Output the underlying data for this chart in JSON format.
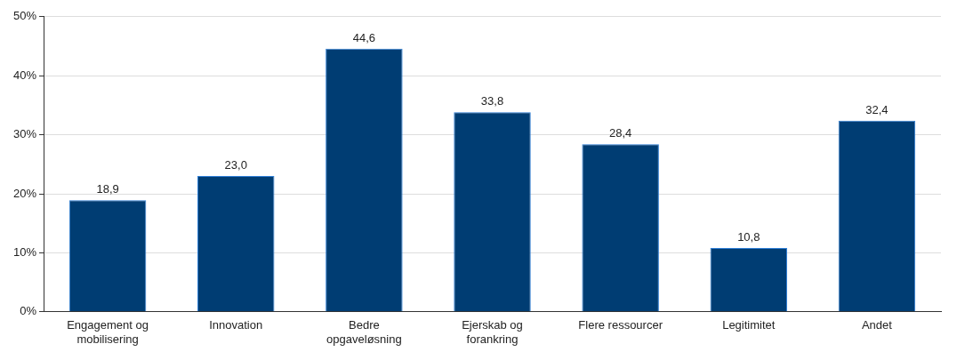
{
  "chart_data": {
    "type": "bar",
    "categories": [
      "Engagement og mobilisering",
      "Innovation",
      "Bedre opgaveløsning",
      "Ejerskab og forankring",
      "Flere ressourcer",
      "Legitimitet",
      "Andet"
    ],
    "values": [
      18.9,
      23.0,
      44.6,
      33.8,
      28.4,
      10.8,
      32.4
    ],
    "value_labels": [
      "18,9",
      "23,0",
      "44,6",
      "33,8",
      "28,4",
      "10,8",
      "32,4"
    ],
    "color": "#003d73",
    "ylim": [
      0,
      50
    ],
    "yticks": [
      {
        "value": 0,
        "label": "0%"
      },
      {
        "value": 10,
        "label": "10%"
      },
      {
        "value": 20,
        "label": "20%"
      },
      {
        "value": 30,
        "label": "30%"
      },
      {
        "value": 40,
        "label": "40%"
      },
      {
        "value": 50,
        "label": "50%"
      }
    ],
    "grid": "y",
    "legend": false
  }
}
